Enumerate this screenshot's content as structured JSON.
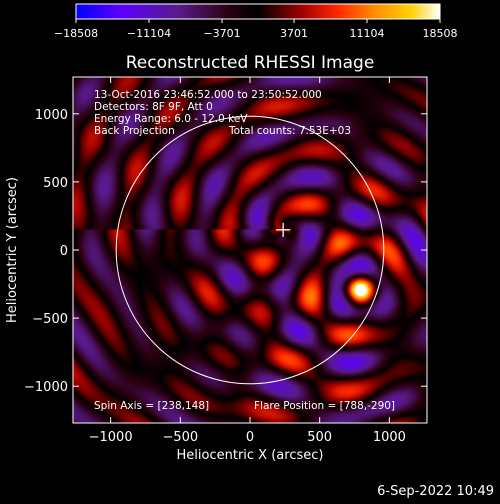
{
  "colorbar": {
    "ticks": [
      "−18508",
      "−11104",
      "−3701",
      "3701",
      "11104",
      "18508"
    ],
    "range": [
      -18508,
      18508
    ],
    "colormap": [
      "#0000ff",
      "#5a00ff",
      "#5a1a8c",
      "#2a0010",
      "#000000",
      "#a00000",
      "#ff2a00",
      "#ff8c00",
      "#ffd200",
      "#ffffff"
    ]
  },
  "chart_data": {
    "type": "heatmap",
    "title": "Reconstructed RHESSI Image",
    "xlabel": "Heliocentric X (arcsec)",
    "ylabel": "Heliocentric Y (arcsec)",
    "xlim": [
      -1270,
      1270
    ],
    "ylim": [
      -1270,
      1270
    ],
    "xticks": [
      "−1000",
      "−500",
      "0",
      "500",
      "1000"
    ],
    "xtick_values": [
      -1000,
      -500,
      0,
      500,
      1000
    ],
    "yticks": [
      "1000",
      "500",
      "0",
      "−500",
      "−1000"
    ],
    "ytick_values": [
      1000,
      500,
      0,
      -500,
      -1000
    ],
    "info_lines": [
      "13-Oct-2016 23:46:52.000 to 23:50:52.000",
      "Detectors: 8F 9F, Att 0",
      "Energy Range: 6.0 - 12.0 keV"
    ],
    "back_projection": "Back Projection",
    "total_counts": "Total counts: 7.53E+03",
    "spin_axis_label": "Spin Axis = [238,148]",
    "spin_axis": [
      238,
      148
    ],
    "flare_position_label": "Flare Position = [788,-290]",
    "flare_position": [
      788,
      -290
    ],
    "solar_disk": {
      "center": [
        0,
        0
      ],
      "radius": 960
    },
    "data_range": [
      -18508,
      18508
    ]
  },
  "footer": {
    "date": "6-Sep-2022 10:49"
  }
}
